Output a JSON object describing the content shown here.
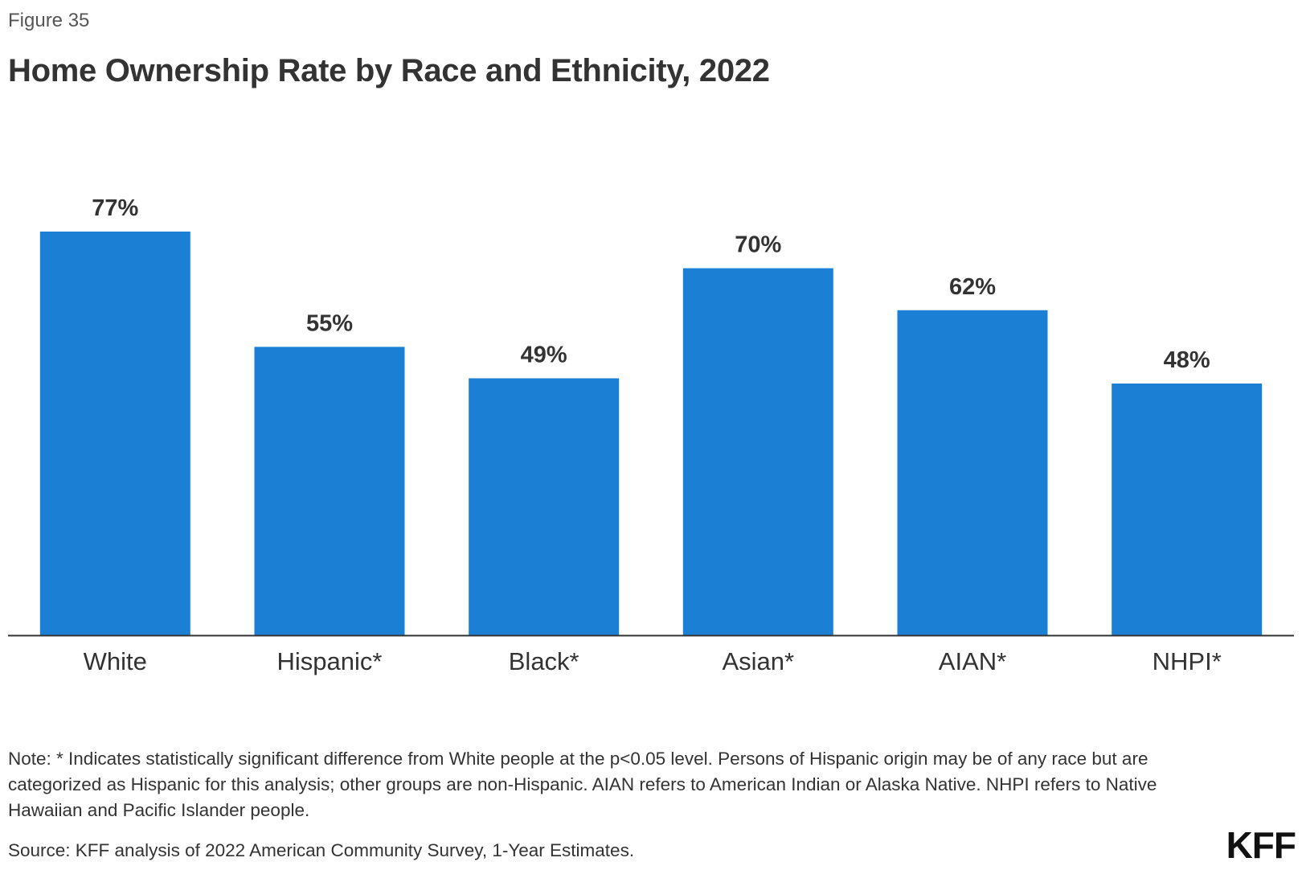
{
  "figure_label": "Figure 35",
  "note": "Note: * Indicates statistically significant difference from White people at the p<0.05 level. Persons of Hispanic origin may be of any race but are categorized as Hispanic for this analysis; other groups are non-Hispanic. AIAN refers to American Indian or Alaska Native. NHPI refers to Native Hawaiian and Pacific Islander people.",
  "source": "Source: KFF analysis of 2022 American Community Survey, 1-Year Estimates.",
  "logo_text": "KFF",
  "colors": {
    "bar": "#1b80d4",
    "axis": "#333333",
    "text": "#333333"
  },
  "chart_data": {
    "type": "bar",
    "title": "Home Ownership Rate by Race and Ethnicity, 2022",
    "xlabel": "",
    "ylabel": "",
    "categories": [
      "White",
      "Hispanic*",
      "Black*",
      "Asian*",
      "AIAN*",
      "NHPI*"
    ],
    "values": [
      77,
      55,
      49,
      70,
      62,
      48
    ],
    "value_labels": [
      "77%",
      "55%",
      "49%",
      "70%",
      "62%",
      "48%"
    ],
    "unit": "%",
    "ylim": [
      0,
      100
    ],
    "grid": false,
    "legend": "none"
  }
}
